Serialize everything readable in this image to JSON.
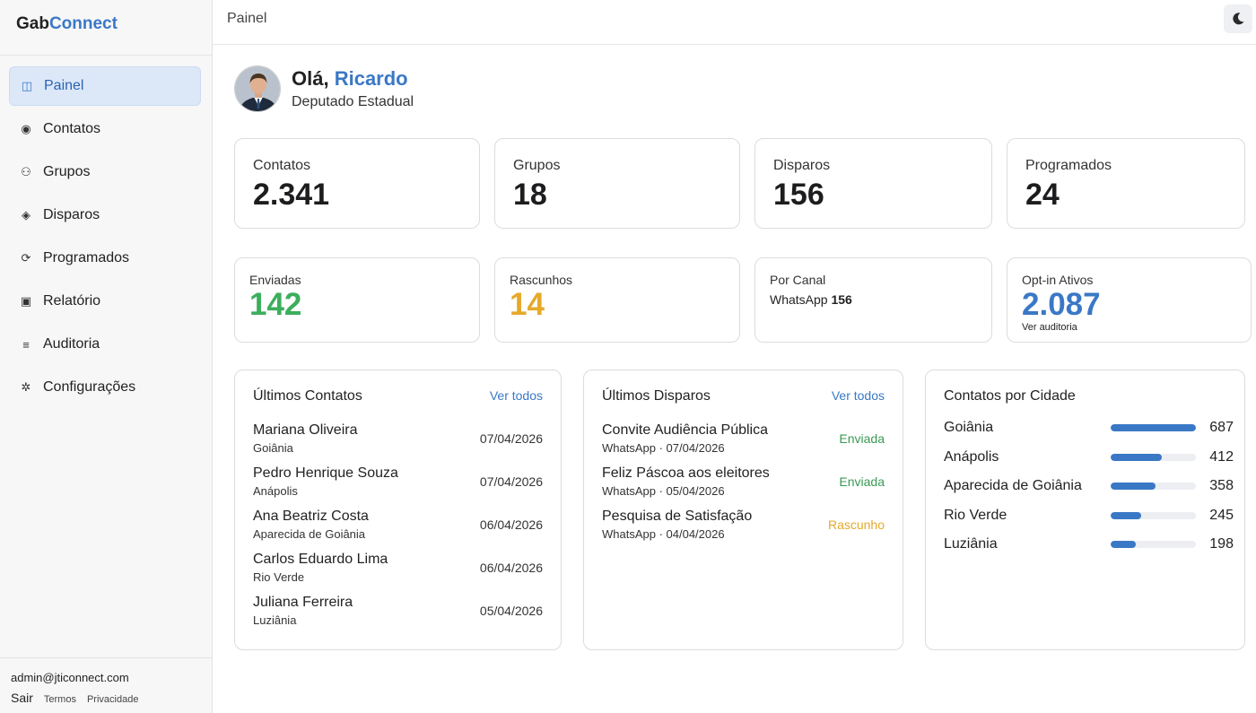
{
  "brand": {
    "part1": "Gab",
    "part2": "Connect"
  },
  "sidebar": {
    "items": [
      {
        "label": "Painel",
        "icon": "panel-icon",
        "glyph": "◫",
        "active": true
      },
      {
        "label": "Contatos",
        "icon": "contacts-icon",
        "glyph": "◉"
      },
      {
        "label": "Grupos",
        "icon": "groups-icon",
        "glyph": "⚇"
      },
      {
        "label": "Disparos",
        "icon": "send-icon",
        "glyph": "◈"
      },
      {
        "label": "Programados",
        "icon": "schedule-icon",
        "glyph": "⟳"
      },
      {
        "label": "Relatório",
        "icon": "report-icon",
        "glyph": "▣"
      },
      {
        "label": "Auditoria",
        "icon": "audit-icon",
        "glyph": "≡"
      },
      {
        "label": "Configurações",
        "icon": "settings-icon",
        "glyph": "✲"
      }
    ],
    "footer": {
      "email": "admin@jticonnect.com",
      "logout": "Sair",
      "terms": "Termos",
      "privacy": "Privacidade"
    }
  },
  "header": {
    "title": "Painel",
    "theme_icon": "moon-icon"
  },
  "greeting": {
    "hello": "Olá,",
    "name": "Ricardo",
    "role": "Deputado Estadual"
  },
  "stats": [
    {
      "label": "Contatos",
      "value": "2.341"
    },
    {
      "label": "Grupos",
      "value": "18"
    },
    {
      "label": "Disparos",
      "value": "156"
    },
    {
      "label": "Programados",
      "value": "24"
    }
  ],
  "stats2": {
    "sent": {
      "label": "Enviadas",
      "value": "142",
      "color": "#3cae5c"
    },
    "drafts": {
      "label": "Rascunhos",
      "value": "14",
      "color": "#e6a92a"
    },
    "channel": {
      "label": "Por Canal",
      "channel": "WhatsApp",
      "value": "156"
    },
    "optin": {
      "label": "Opt-in Ativos",
      "value": "2.087",
      "link": "Ver auditoria",
      "color": "#3a78c6"
    }
  },
  "recent_contacts": {
    "title": "Últimos Contatos",
    "link": "Ver todos",
    "rows": [
      {
        "name": "Mariana Oliveira",
        "city": "Goiânia",
        "date": "07/04/2026"
      },
      {
        "name": "Pedro Henrique Souza",
        "city": "Anápolis",
        "date": "07/04/2026"
      },
      {
        "name": "Ana Beatriz Costa",
        "city": "Aparecida de Goiânia",
        "date": "06/04/2026"
      },
      {
        "name": "Carlos Eduardo Lima",
        "city": "Rio Verde",
        "date": "06/04/2026"
      },
      {
        "name": "Juliana Ferreira",
        "city": "Luziânia",
        "date": "05/04/2026"
      }
    ]
  },
  "recent_sends": {
    "title": "Últimos Disparos",
    "link": "Ver todos",
    "rows": [
      {
        "title": "Convite Audiência Pública",
        "meta": "WhatsApp · 07/04/2026",
        "status": "Enviada",
        "kind": "sent"
      },
      {
        "title": "Feliz Páscoa aos eleitores",
        "meta": "WhatsApp · 05/04/2026",
        "status": "Enviada",
        "kind": "sent"
      },
      {
        "title": "Pesquisa de Satisfação",
        "meta": "WhatsApp · 04/04/2026",
        "status": "Rascunho",
        "kind": "draft"
      }
    ]
  },
  "contacts_by_city": {
    "title": "Contatos por Cidade",
    "max": 687,
    "rows": [
      {
        "city": "Goiânia",
        "count": 687
      },
      {
        "city": "Anápolis",
        "count": 412
      },
      {
        "city": "Aparecida de Goiânia",
        "count": 358
      },
      {
        "city": "Rio Verde",
        "count": 245
      },
      {
        "city": "Luziânia",
        "count": 198
      }
    ]
  }
}
